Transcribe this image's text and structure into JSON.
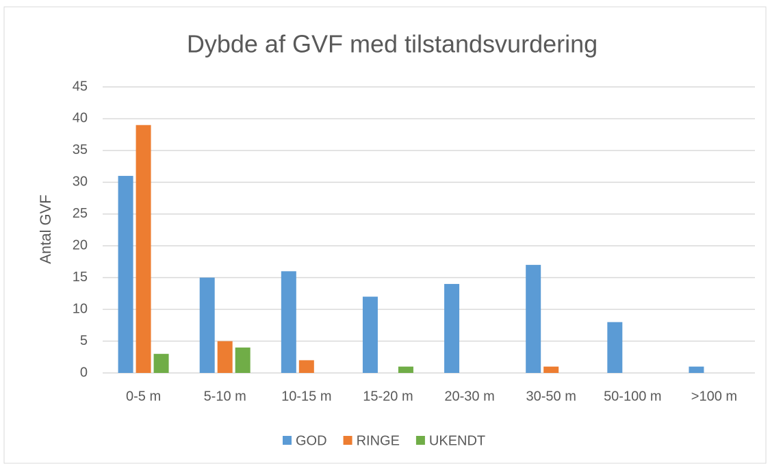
{
  "chart_data": {
    "type": "bar",
    "title": "Dybde af GVF med tilstandsvurdering",
    "y_label": "Antal GVF",
    "categories": [
      "0-5 m",
      "5-10 m",
      "10-15 m",
      "15-20 m",
      "20-30 m",
      "30-50 m",
      "50-100 m",
      ">100 m"
    ],
    "series": [
      {
        "name": "GOD",
        "color": "#5b9bd5",
        "values": [
          31,
          15,
          16,
          12,
          14,
          17,
          8,
          1
        ]
      },
      {
        "name": "RINGE",
        "color": "#ed7d31",
        "values": [
          39,
          5,
          2,
          0,
          0,
          1,
          0,
          0
        ]
      },
      {
        "name": "UKENDT",
        "color": "#70ad47",
        "values": [
          3,
          4,
          0,
          1,
          0,
          0,
          0,
          0
        ]
      }
    ],
    "ylim": [
      0,
      45
    ],
    "yticks": [
      0,
      5,
      10,
      15,
      20,
      25,
      30,
      35,
      40,
      45
    ],
    "grid": true,
    "legend": "bottom"
  }
}
